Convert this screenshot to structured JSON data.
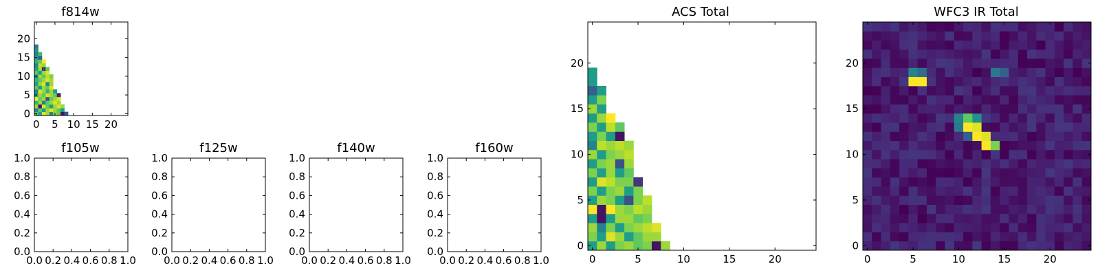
{
  "chart_data": [
    {
      "id": "f814w",
      "type": "heatmap",
      "title": "f814w",
      "xlim": [
        -0.5,
        24.5
      ],
      "ylim": [
        -0.5,
        24.5
      ],
      "xticks": [
        0,
        5,
        10,
        15,
        20
      ],
      "yticks": [
        0,
        5,
        10,
        15,
        20
      ],
      "xtick_labels": [
        "0",
        "5",
        "10",
        "15",
        "20"
      ],
      "ytick_labels": [
        "0",
        "5",
        "10",
        "15",
        "20"
      ],
      "colormap": "viridis",
      "value_range": [
        0,
        1
      ],
      "grid_rows_bottom_up": [
        [
          0.75,
          0.55,
          0.95,
          0.85,
          0.45,
          0.85,
          0.75,
          0.05,
          0.25
        ],
        [
          0.45,
          0.75,
          0.55,
          0.85,
          0.95,
          0.85,
          0.75,
          0.55
        ],
        [
          0.85,
          0.05,
          0.95,
          0.75,
          0.55,
          0.85,
          0.95,
          0.85
        ],
        [
          0.65,
          0.85,
          0.45,
          0.75,
          0.85,
          0.95,
          0.85
        ],
        [
          1.0,
          0.75,
          0.85,
          0.25,
          0.75,
          0.85,
          0.95
        ],
        [
          0.55,
          0.85,
          0.75,
          0.95,
          0.85,
          0.75,
          0.1
        ],
        [
          0.45,
          0.95,
          0.85,
          0.65,
          0.85,
          0.55
        ],
        [
          0.75,
          0.55,
          0.85,
          0.75,
          0.95
        ],
        [
          0.55,
          0.85,
          0.95,
          0.45,
          0.85
        ],
        [
          0.65,
          0.75,
          0.85,
          0.95,
          0.85
        ],
        [
          0.45,
          0.85,
          0.75,
          0.9,
          0.8
        ],
        [
          0.75,
          0.55,
          0.85,
          0.95
        ],
        [
          0.55,
          0.85,
          0.15,
          0.75
        ],
        [
          0.45,
          0.9,
          0.85
        ],
        [
          0.65,
          0.75,
          1.0
        ],
        [
          0.55,
          0.3
        ],
        [
          0.45,
          0.7
        ],
        [
          0.5
        ],
        [
          0.4
        ]
      ]
    },
    {
      "id": "f105w",
      "type": "heatmap",
      "title": "f105w",
      "xlim": [
        0,
        1
      ],
      "ylim": [
        0,
        1
      ],
      "xticks": [
        0,
        0.2,
        0.4,
        0.6,
        0.8,
        1.0
      ],
      "yticks": [
        0,
        0.2,
        0.4,
        0.6,
        0.8,
        1.0
      ],
      "xtick_labels": [
        "0.0",
        "0.2",
        "0.4",
        "0.6",
        "0.8",
        "1.0"
      ],
      "ytick_labels": [
        "0.0",
        "0.2",
        "0.4",
        "0.6",
        "0.8",
        "1.0"
      ]
    },
    {
      "id": "f125w",
      "type": "heatmap",
      "title": "f125w",
      "xlim": [
        0,
        1
      ],
      "ylim": [
        0,
        1
      ],
      "xticks": [
        0,
        0.2,
        0.4,
        0.6,
        0.8,
        1.0
      ],
      "yticks": [
        0,
        0.2,
        0.4,
        0.6,
        0.8,
        1.0
      ],
      "xtick_labels": [
        "0.0",
        "0.2",
        "0.4",
        "0.6",
        "0.8",
        "1.0"
      ],
      "ytick_labels": [
        "0.0",
        "0.2",
        "0.4",
        "0.6",
        "0.8",
        "1.0"
      ]
    },
    {
      "id": "f140w",
      "type": "heatmap",
      "title": "f140w",
      "xlim": [
        0,
        1
      ],
      "ylim": [
        0,
        1
      ],
      "xticks": [
        0,
        0.2,
        0.4,
        0.6,
        0.8,
        1.0
      ],
      "yticks": [
        0,
        0.2,
        0.4,
        0.6,
        0.8,
        1.0
      ],
      "xtick_labels": [
        "0.0",
        "0.2",
        "0.4",
        "0.6",
        "0.8",
        "1.0"
      ],
      "ytick_labels": [
        "0.0",
        "0.2",
        "0.4",
        "0.6",
        "0.8",
        "1.0"
      ]
    },
    {
      "id": "f160w",
      "type": "heatmap",
      "title": "f160w",
      "xlim": [
        0,
        1
      ],
      "ylim": [
        0,
        1
      ],
      "xticks": [
        0,
        0.2,
        0.4,
        0.6,
        0.8,
        1.0
      ],
      "yticks": [
        0,
        0.2,
        0.4,
        0.6,
        0.8,
        1.0
      ],
      "xtick_labels": [
        "0.0",
        "0.2",
        "0.4",
        "0.6",
        "0.8",
        "1.0"
      ],
      "ytick_labels": [
        "0.0",
        "0.2",
        "0.4",
        "0.6",
        "0.8",
        "1.0"
      ]
    },
    {
      "id": "acs_total",
      "type": "heatmap",
      "title": "ACS Total",
      "xlim": [
        -0.5,
        24.5
      ],
      "ylim": [
        -0.5,
        24.5
      ],
      "xticks": [
        0,
        5,
        10,
        15,
        20
      ],
      "yticks": [
        0,
        5,
        10,
        15,
        20
      ],
      "xtick_labels": [
        "0",
        "5",
        "10",
        "15",
        "20"
      ],
      "ytick_labels": [
        "0",
        "5",
        "10",
        "15",
        "20"
      ],
      "colormap": "viridis",
      "value_range": [
        0,
        1
      ],
      "grid_rows_bottom_up": [
        [
          0.55,
          0.85,
          0.55,
          0.8,
          0.85,
          0.75,
          0.8,
          0.05,
          0.85
        ],
        [
          0.8,
          0.55,
          0.95,
          0.85,
          0.55,
          0.75,
          0.85,
          0.85
        ],
        [
          0.85,
          0.45,
          0.8,
          0.55,
          0.8,
          0.85,
          0.9,
          0.95
        ],
        [
          0.55,
          0.05,
          0.55,
          0.85,
          0.85,
          0.75,
          0.8
        ],
        [
          1.0,
          0.05,
          1.0,
          0.85,
          0.8,
          0.9,
          0.85
        ],
        [
          0.55,
          0.85,
          0.8,
          0.55,
          0.25,
          0.8,
          0.9
        ],
        [
          0.8,
          0.55,
          0.8,
          0.85,
          0.55,
          0.8
        ],
        [
          0.55,
          0.95,
          0.9,
          0.8,
          0.8,
          0.15
        ],
        [
          0.8,
          0.55,
          0.85,
          0.55,
          0.75
        ],
        [
          0.55,
          0.8,
          0.85,
          0.25,
          0.85
        ],
        [
          0.85,
          0.55,
          0.8,
          0.85,
          0.9
        ],
        [
          0.45,
          0.9,
          0.85,
          0.9,
          0.85
        ],
        [
          0.55,
          0.8,
          0.55,
          0.05
        ],
        [
          0.8,
          0.55,
          0.9,
          0.75
        ],
        [
          0.55,
          0.85,
          1.0
        ],
        [
          0.85,
          0.55
        ],
        [
          0.55,
          0.8
        ],
        [
          0.3,
          0.55
        ],
        [
          0.55
        ],
        [
          0.55
        ]
      ]
    },
    {
      "id": "wfc3_ir_total",
      "type": "heatmap",
      "title": "WFC3 IR Total",
      "xlim": [
        -0.5,
        24.5
      ],
      "ylim": [
        -0.5,
        24.5
      ],
      "xticks": [
        0,
        5,
        10,
        15,
        20
      ],
      "yticks": [
        0,
        5,
        10,
        15,
        20
      ],
      "xtick_labels": [
        "0",
        "5",
        "10",
        "15",
        "20"
      ],
      "ytick_labels": [
        "0",
        "5",
        "10",
        "15",
        "20"
      ],
      "colormap": "viridis",
      "value_range": [
        0,
        1
      ],
      "background_range": [
        0.0,
        0.16
      ],
      "bright_pixels": [
        {
          "x": 5,
          "y": 18,
          "value": 1.0
        },
        {
          "x": 6,
          "y": 18,
          "value": 1.0
        },
        {
          "x": 5,
          "y": 19,
          "value": 0.45
        },
        {
          "x": 6,
          "y": 19,
          "value": 0.35
        },
        {
          "x": 10,
          "y": 14,
          "value": 0.45
        },
        {
          "x": 11,
          "y": 14,
          "value": 0.75
        },
        {
          "x": 12,
          "y": 14,
          "value": 0.5
        },
        {
          "x": 10,
          "y": 13,
          "value": 0.4
        },
        {
          "x": 11,
          "y": 13,
          "value": 1.0
        },
        {
          "x": 12,
          "y": 13,
          "value": 0.95
        },
        {
          "x": 12,
          "y": 12,
          "value": 1.0
        },
        {
          "x": 13,
          "y": 12,
          "value": 0.95
        },
        {
          "x": 13,
          "y": 11,
          "value": 1.0
        },
        {
          "x": 14,
          "y": 11,
          "value": 0.8
        },
        {
          "x": 14,
          "y": 19,
          "value": 0.4
        },
        {
          "x": 15,
          "y": 19,
          "value": 0.3
        },
        {
          "x": 11,
          "y": 12,
          "value": 0.3
        }
      ]
    }
  ]
}
